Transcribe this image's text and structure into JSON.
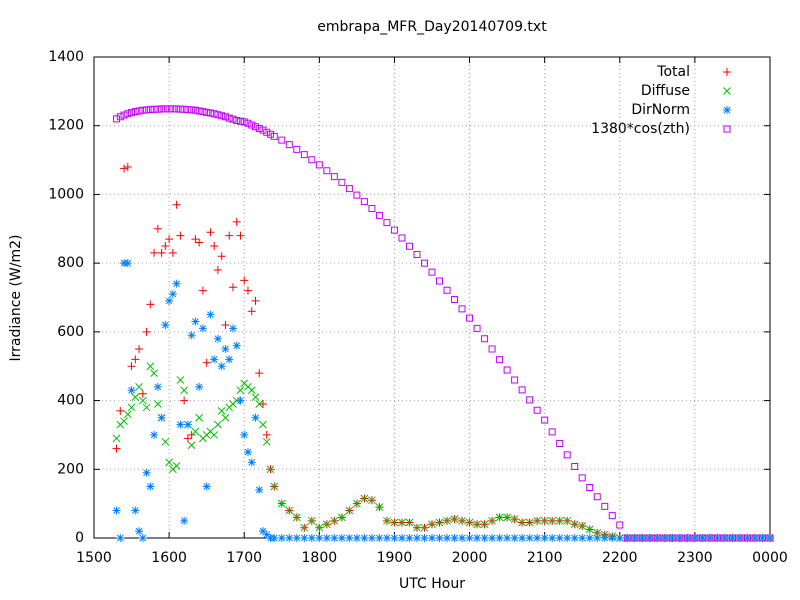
{
  "chart_data": {
    "type": "scatter",
    "title": "embrapa_MFR_Day20140709.txt",
    "x_label": "UTC Hour",
    "y_label": "Irradiance (W/m2)",
    "xlim": [
      1500,
      2400
    ],
    "ylim": [
      0,
      1400
    ],
    "xticks": [
      1500,
      1600,
      1700,
      1800,
      1900,
      2000,
      2100,
      2200,
      2300,
      {
        "value": 2400,
        "label": "0000"
      }
    ],
    "yticks": [
      0,
      200,
      400,
      600,
      800,
      1000,
      1200,
      1400
    ],
    "grid": true,
    "legend": "top-right",
    "x": [
      1530,
      1535,
      1540,
      1545,
      1550,
      1555,
      1560,
      1565,
      1570,
      1575,
      1580,
      1585,
      1590,
      1595,
      1600,
      1605,
      1610,
      1615,
      1620,
      1625,
      1630,
      1635,
      1640,
      1645,
      1650,
      1655,
      1660,
      1665,
      1670,
      1675,
      1680,
      1685,
      1690,
      1695,
      1700,
      1705,
      1710,
      1715,
      1720,
      1725,
      1730,
      1735,
      1740,
      1750,
      1760,
      1770,
      1780,
      1790,
      1800,
      1810,
      1820,
      1830,
      1840,
      1850,
      1860,
      1870,
      1880,
      1890,
      1900,
      1910,
      1920,
      1930,
      1940,
      1950,
      1960,
      1970,
      1980,
      1990,
      2000,
      2010,
      2020,
      2030,
      2040,
      2050,
      2060,
      2070,
      2080,
      2090,
      2100,
      2110,
      2120,
      2130,
      2140,
      2150,
      2160,
      2170,
      2180,
      2190,
      2200,
      2210,
      2220,
      2230,
      2240,
      2250,
      2260,
      2270,
      2280,
      2290,
      2300,
      2310,
      2320,
      2330,
      2340,
      2350,
      2360,
      2370,
      2380,
      2390,
      2400
    ],
    "series": [
      {
        "name": "Total",
        "color": "#ff0000",
        "values": [
          260,
          370,
          1075,
          1080,
          500,
          520,
          550,
          420,
          600,
          680,
          830,
          900,
          830,
          850,
          870,
          830,
          970,
          880,
          400,
          290,
          300,
          870,
          860,
          720,
          510,
          890,
          850,
          780,
          820,
          620,
          880,
          730,
          920,
          880,
          750,
          720,
          660,
          690,
          480,
          390,
          300,
          200,
          150,
          100,
          80,
          60,
          30,
          50,
          30,
          40,
          50,
          60,
          80,
          100,
          115,
          110,
          90,
          50,
          45,
          45,
          45,
          30,
          30,
          40,
          45,
          50,
          55,
          50,
          45,
          40,
          40,
          50,
          60,
          60,
          55,
          45,
          45,
          50,
          50,
          50,
          50,
          50,
          40,
          35,
          25,
          15,
          10,
          5,
          0,
          0,
          0,
          0,
          0,
          0,
          0,
          0,
          0,
          0,
          0,
          0,
          0,
          0,
          0,
          0,
          0,
          0,
          0,
          0,
          0
        ]
      },
      {
        "name": "Diffuse",
        "color": "#00c000",
        "values": [
          290,
          330,
          340,
          360,
          380,
          410,
          440,
          400,
          380,
          500,
          480,
          390,
          350,
          280,
          220,
          200,
          210,
          460,
          430,
          330,
          270,
          310,
          350,
          290,
          300,
          310,
          300,
          330,
          370,
          350,
          380,
          390,
          400,
          430,
          450,
          440,
          430,
          410,
          390,
          330,
          280,
          200,
          150,
          100,
          80,
          60,
          30,
          50,
          30,
          40,
          50,
          60,
          80,
          100,
          115,
          110,
          90,
          50,
          45,
          45,
          45,
          30,
          30,
          40,
          45,
          50,
          55,
          50,
          45,
          40,
          40,
          50,
          60,
          60,
          55,
          45,
          45,
          50,
          50,
          50,
          50,
          50,
          40,
          35,
          25,
          15,
          10,
          5,
          0,
          0,
          0,
          0,
          0,
          0,
          0,
          0,
          0,
          0,
          0,
          0,
          0,
          0,
          0,
          0,
          0,
          0,
          0,
          0,
          0
        ]
      },
      {
        "name": "DirNorm",
        "color": "#0080ff",
        "values": [
          80,
          0,
          800,
          800,
          430,
          80,
          20,
          0,
          190,
          150,
          300,
          440,
          350,
          620,
          690,
          710,
          740,
          330,
          50,
          330,
          590,
          630,
          440,
          610,
          150,
          650,
          520,
          580,
          500,
          550,
          520,
          610,
          560,
          400,
          300,
          250,
          220,
          350,
          140,
          20,
          10,
          0,
          0,
          0,
          0,
          0,
          0,
          0,
          0,
          0,
          0,
          0,
          0,
          0,
          0,
          0,
          0,
          0,
          0,
          0,
          0,
          0,
          0,
          0,
          0,
          0,
          0,
          0,
          0,
          0,
          0,
          0,
          0,
          0,
          0,
          0,
          0,
          0,
          0,
          0,
          0,
          0,
          0,
          0,
          0,
          0,
          0,
          0,
          0,
          0,
          0,
          0,
          0,
          0,
          0,
          0,
          0,
          0,
          0,
          0,
          0,
          0,
          0,
          0,
          0,
          0,
          0,
          0,
          0
        ]
      },
      {
        "name": "1380*cos(zth)",
        "color": "#c000ff",
        "values": [
          1220,
          1226,
          1231,
          1235,
          1238,
          1241,
          1243,
          1245,
          1246,
          1247,
          1248,
          1248,
          1249,
          1249,
          1249,
          1249,
          1249,
          1248,
          1248,
          1247,
          1246,
          1245,
          1243,
          1241,
          1239,
          1237,
          1235,
          1232,
          1229,
          1226,
          1222,
          1219,
          1215,
          1213,
          1211,
          1207,
          1202,
          1197,
          1192,
          1187,
          1181,
          1175,
          1169,
          1158,
          1145,
          1131,
          1116,
          1101,
          1086,
          1069,
          1052,
          1035,
          1017,
          998,
          979,
          959,
          939,
          918,
          896,
          873,
          849,
          825,
          800,
          774,
          748,
          721,
          694,
          667,
          640,
          610,
          580,
          550,
          519,
          489,
          460,
          431,
          402,
          372,
          343,
          309,
          275,
          242,
          208,
          175,
          147,
          120,
          92,
          65,
          38,
          0,
          0,
          0,
          0,
          0,
          0,
          0,
          0,
          0,
          0,
          0,
          0,
          0,
          0,
          0,
          0,
          0,
          0,
          0,
          0
        ]
      }
    ]
  }
}
